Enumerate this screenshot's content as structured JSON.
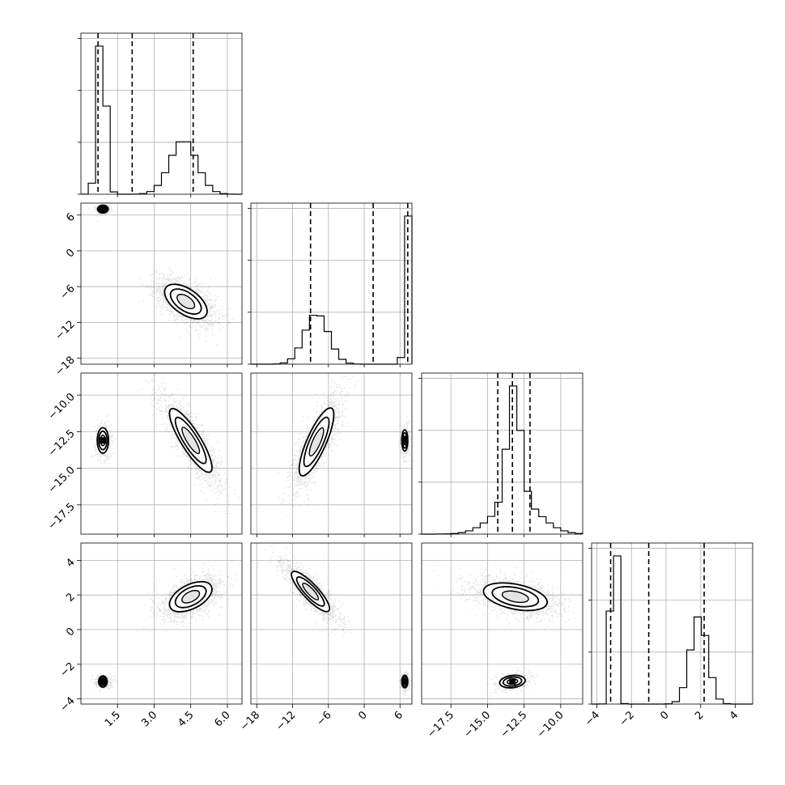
{
  "chart_data": {
    "type": "scatter",
    "title": "",
    "layout": "corner",
    "parameters": [
      {
        "range": [
          0.0,
          6.6
        ],
        "ticks": [
          1.5,
          3.0,
          4.5,
          6.0
        ],
        "tick_labels": [
          "1.5",
          "3.0",
          "4.5",
          "6.0"
        ],
        "quantiles": [
          0.7,
          2.1,
          4.6
        ],
        "modes": [
          {
            "mean": 0.85,
            "sd": 0.17,
            "w": 0.5
          },
          {
            "mean": 4.2,
            "sd": 0.55,
            "w": 0.5
          }
        ]
      },
      {
        "range": [
          -19,
          8
        ],
        "ticks": [
          -18,
          -12,
          -6,
          0,
          6
        ],
        "tick_labels": [
          "−18",
          "−12",
          "−6",
          "0",
          "6"
        ],
        "quantiles": [
          -9.0,
          1.5,
          7.3
        ],
        "modes": [
          {
            "mean": 7.0,
            "sd": 0.3,
            "w": 0.5
          },
          {
            "mean": -8.0,
            "sd": 2.0,
            "w": 0.5
          }
        ]
      },
      {
        "range": [
          -19.5,
          -8.5
        ],
        "ticks": [
          -17.5,
          -15.0,
          -12.5,
          -10.0
        ],
        "tick_labels": [
          "−17.5",
          "−15.0",
          "−12.5",
          "−10.0"
        ],
        "quantiles": [
          -14.3,
          -13.3,
          -12.1
        ],
        "modes": [
          {
            "mean": -13.2,
            "sd": 0.45,
            "w": 0.5
          },
          {
            "mean": -13.0,
            "sd": 1.5,
            "w": 0.5
          }
        ]
      },
      {
        "range": [
          -4.3,
          5.0
        ],
        "ticks": [
          -4,
          -2,
          0,
          2,
          4
        ],
        "tick_labels": [
          "−4",
          "−2",
          "0",
          "2",
          "4"
        ],
        "quantiles": [
          -3.2,
          -1.0,
          2.2
        ],
        "modes": [
          {
            "mean": -3.0,
            "sd": 0.17,
            "w": 0.5
          },
          {
            "mean": 1.9,
            "sd": 0.5,
            "w": 0.5
          }
        ]
      }
    ],
    "pairs": [
      {
        "x_param": 0,
        "y_param": 1,
        "clusters": [
          {
            "cx": 0.9,
            "cy": 7.0,
            "sx": 0.15,
            "sy": 0.45,
            "corr": 0.0,
            "n": 300
          },
          {
            "cx": 4.3,
            "cy": -8.5,
            "sx": 0.6,
            "sy": 2.0,
            "corr": -0.55,
            "n": 1800
          }
        ]
      },
      {
        "x_param": 0,
        "y_param": 2,
        "clusters": [
          {
            "cx": 0.9,
            "cy": -13.1,
            "sx": 0.16,
            "sy": 0.6,
            "corr": 0.0,
            "n": 450
          },
          {
            "cx": 4.5,
            "cy": -13.1,
            "sx": 0.6,
            "sy": 1.5,
            "corr": -0.85,
            "n": 1800
          }
        ]
      },
      {
        "x_param": 1,
        "y_param": 2,
        "clusters": [
          {
            "cx": 6.8,
            "cy": -13.1,
            "sx": 0.35,
            "sy": 0.5,
            "corr": 0.0,
            "n": 450
          },
          {
            "cx": -8.0,
            "cy": -13.2,
            "sx": 2.0,
            "sy": 1.6,
            "corr": 0.8,
            "n": 1800
          }
        ]
      },
      {
        "x_param": 0,
        "y_param": 3,
        "clusters": [
          {
            "cx": 0.9,
            "cy": -3.0,
            "sx": 0.16,
            "sy": 0.17,
            "corr": 0.0,
            "n": 450
          },
          {
            "cx": 4.5,
            "cy": 1.9,
            "sx": 0.6,
            "sy": 0.6,
            "corr": 0.5,
            "n": 1800
          }
        ]
      },
      {
        "x_param": 1,
        "y_param": 3,
        "clusters": [
          {
            "cx": 6.8,
            "cy": -3.0,
            "sx": 0.35,
            "sy": 0.25,
            "corr": 0.0,
            "n": 450
          },
          {
            "cx": -9.0,
            "cy": 2.2,
            "sx": 2.2,
            "sy": 0.8,
            "corr": -0.85,
            "n": 1800
          }
        ]
      },
      {
        "x_param": 2,
        "y_param": 3,
        "clusters": [
          {
            "cx": -13.3,
            "cy": -3.0,
            "sx": 0.6,
            "sy": 0.25,
            "corr": 0.2,
            "n": 450
          },
          {
            "cx": -13.1,
            "cy": 1.9,
            "sx": 1.5,
            "sy": 0.55,
            "corr": -0.4,
            "n": 1800
          }
        ]
      }
    ],
    "grid": true
  }
}
